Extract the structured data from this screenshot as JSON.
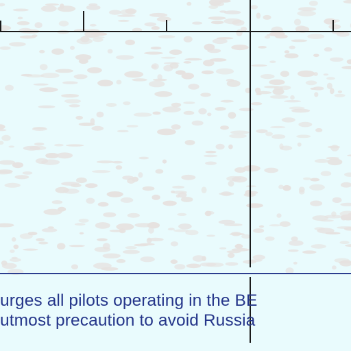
{
  "notice": {
    "line1": "urges all pilots operating in the BE",
    "line2": "utmost precaution to avoid Russia"
  },
  "colors": {
    "background": "#e9fbfd",
    "terrain_speckle": "#e6e2e0",
    "grid_line": "#1a1a1a",
    "notice_text": "#25368a",
    "notice_border": "#2c3e8f"
  }
}
